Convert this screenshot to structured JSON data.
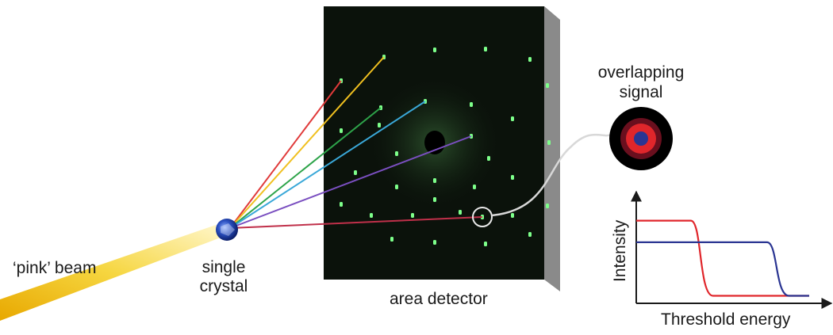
{
  "labels": {
    "beam": "‘pink’ beam",
    "crystal_line1": "single",
    "crystal_line2": "crystal",
    "detector": "area detector",
    "signal_line1": "overlapping",
    "signal_line2": "signal"
  },
  "plot": {
    "xlabel": "Threshold energy",
    "ylabel": "Intensity",
    "series": [
      {
        "color": "#e0262b",
        "high": 0.78,
        "low": 0.05,
        "step": 0.38
      },
      {
        "color": "#2a3592",
        "high": 0.57,
        "low": 0.05,
        "step": 0.82
      }
    ]
  },
  "rays": [
    {
      "color": "#e03a3a"
    },
    {
      "color": "#f0c020"
    },
    {
      "color": "#2ea44a"
    },
    {
      "color": "#3aa8d8"
    },
    {
      "color": "#7a4fc0"
    },
    {
      "color": "#c0304a"
    }
  ],
  "colors": {
    "detector_face": "#0b120b",
    "detector_side": "#8a8a8a",
    "spot": "#7dff8a",
    "beam": "#f4c61a",
    "crystal": "#2a4fc0"
  }
}
